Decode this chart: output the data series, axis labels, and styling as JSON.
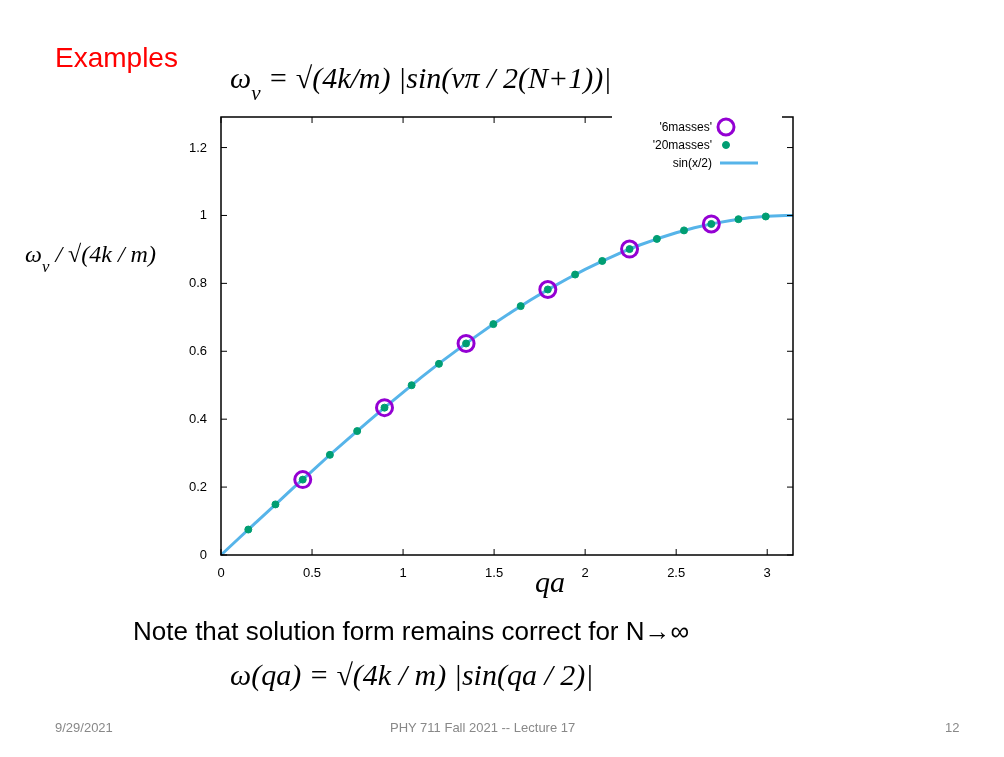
{
  "chart_data": {
    "type": "scatter",
    "title": "Examples",
    "xlabel": "qa",
    "ylabel": "ω$_{ν}$ / √(4k / m)",
    "annotations": [
      "ω$_{ν}$ = √(4k/m) |sin(νπ / 2(N+1))|",
      "Note that solution form remains correct for N→∞",
      "ω(qa) = √(4k / m) |sin(qa / 2)|",
      "9/29/2021",
      "PHY 711  Fall 2021 -- Lecture 17",
      "12"
    ],
    "xlim": [
      0,
      3.1416
    ],
    "ylim": [
      0,
      1.29
    ],
    "xticks": [
      0,
      0.5,
      1,
      1.5,
      2,
      2.5,
      3
    ],
    "yticks": [
      0,
      0.2,
      0.4,
      0.6,
      0.8,
      1,
      1.2
    ],
    "grid": false,
    "legend": "top right",
    "series": [
      {
        "name": "'6masses'",
        "marker": "circle",
        "color": "#9400d3",
        "x": [
          0.449,
          0.898,
          1.346,
          1.795,
          2.244,
          2.693
        ],
        "values": [
          0.222,
          0.434,
          0.623,
          0.782,
          0.901,
          0.975
        ]
      },
      {
        "name": "'20masses'",
        "marker": "circle",
        "color": "#009e73",
        "x": [
          0.15,
          0.299,
          0.449,
          0.598,
          0.748,
          0.898,
          1.047,
          1.197,
          1.346,
          1.496,
          1.646,
          1.795,
          1.945,
          2.094,
          2.244,
          2.394,
          2.543,
          2.693,
          2.842,
          2.992
        ],
        "values": [
          0.075,
          0.149,
          0.222,
          0.295,
          0.365,
          0.434,
          0.5,
          0.563,
          0.623,
          0.68,
          0.733,
          0.782,
          0.826,
          0.866,
          0.901,
          0.931,
          0.956,
          0.975,
          0.989,
          0.997
        ]
      },
      {
        "name": "sin(x/2)",
        "type": "line",
        "marker": "none",
        "color": "#56b4e9",
        "x": [
          0,
          0.1,
          0.2,
          0.3,
          0.4,
          0.5,
          0.6,
          0.7,
          0.8,
          0.9,
          1,
          1.1,
          1.2,
          1.3,
          1.4,
          1.5,
          1.6,
          1.7,
          1.8,
          1.9,
          2,
          2.1,
          2.2,
          2.3,
          2.4,
          2.5,
          2.6,
          2.7,
          2.8,
          2.9,
          3,
          3.1,
          3.1416
        ],
        "values": [
          0,
          0.05,
          0.1,
          0.149,
          0.199,
          0.247,
          0.296,
          0.343,
          0.389,
          0.435,
          0.479,
          0.523,
          0.565,
          0.605,
          0.644,
          0.682,
          0.717,
          0.751,
          0.783,
          0.813,
          0.841,
          0.867,
          0.891,
          0.913,
          0.932,
          0.949,
          0.964,
          0.976,
          0.985,
          0.993,
          0.998,
          1,
          1
        ]
      }
    ]
  }
}
